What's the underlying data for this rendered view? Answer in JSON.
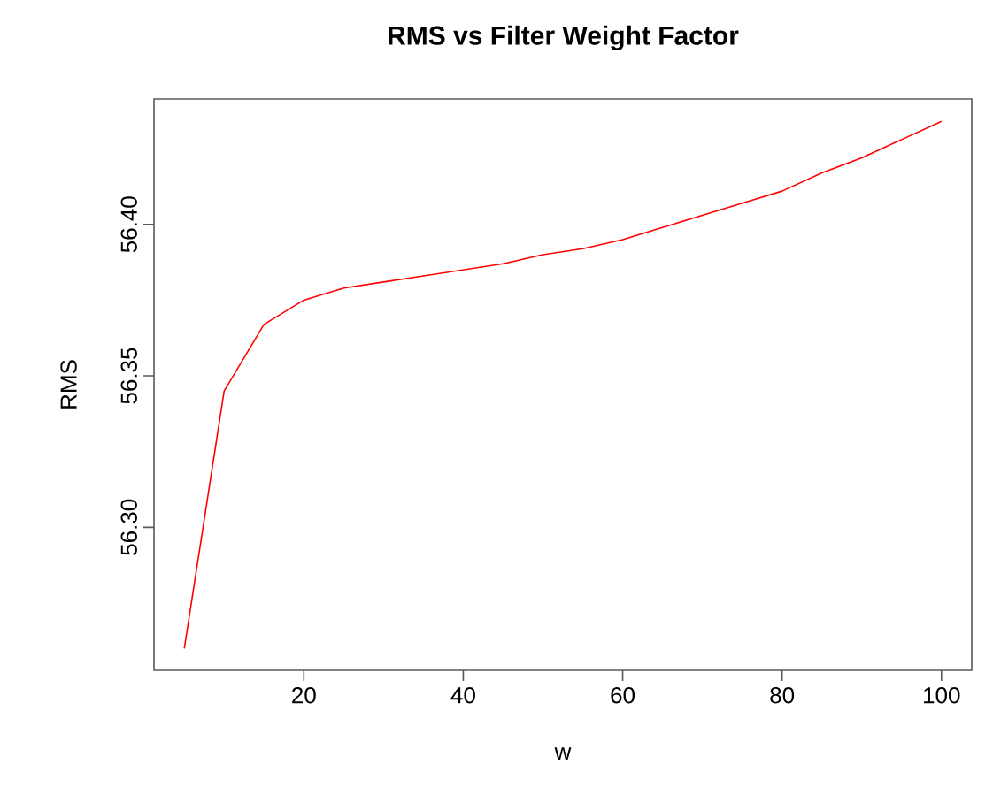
{
  "chart_data": {
    "type": "line",
    "title": "RMS vs Filter Weight Factor",
    "xlabel": "w",
    "ylabel": "RMS",
    "x": [
      5,
      10,
      15,
      20,
      25,
      30,
      35,
      40,
      45,
      50,
      55,
      60,
      65,
      70,
      75,
      80,
      85,
      90,
      95,
      100
    ],
    "series": [
      {
        "color": "#ff0000",
        "values": [
          56.26,
          56.345,
          56.367,
          56.375,
          56.379,
          56.381,
          56.383,
          56.385,
          56.387,
          56.39,
          56.392,
          56.395,
          56.399,
          56.403,
          56.407,
          56.411,
          56.417,
          56.422,
          56.428,
          56.434
        ]
      }
    ],
    "xlim": [
      1.2,
      103.8
    ],
    "ylim": [
      56.2528,
      56.4414
    ],
    "xticks": [
      20,
      40,
      60,
      80,
      100
    ],
    "yticks": [
      {
        "value": 56.3,
        "label": "56.30"
      },
      {
        "value": 56.35,
        "label": "56.35"
      },
      {
        "value": 56.4,
        "label": "56.40"
      }
    ],
    "grid": false
  }
}
